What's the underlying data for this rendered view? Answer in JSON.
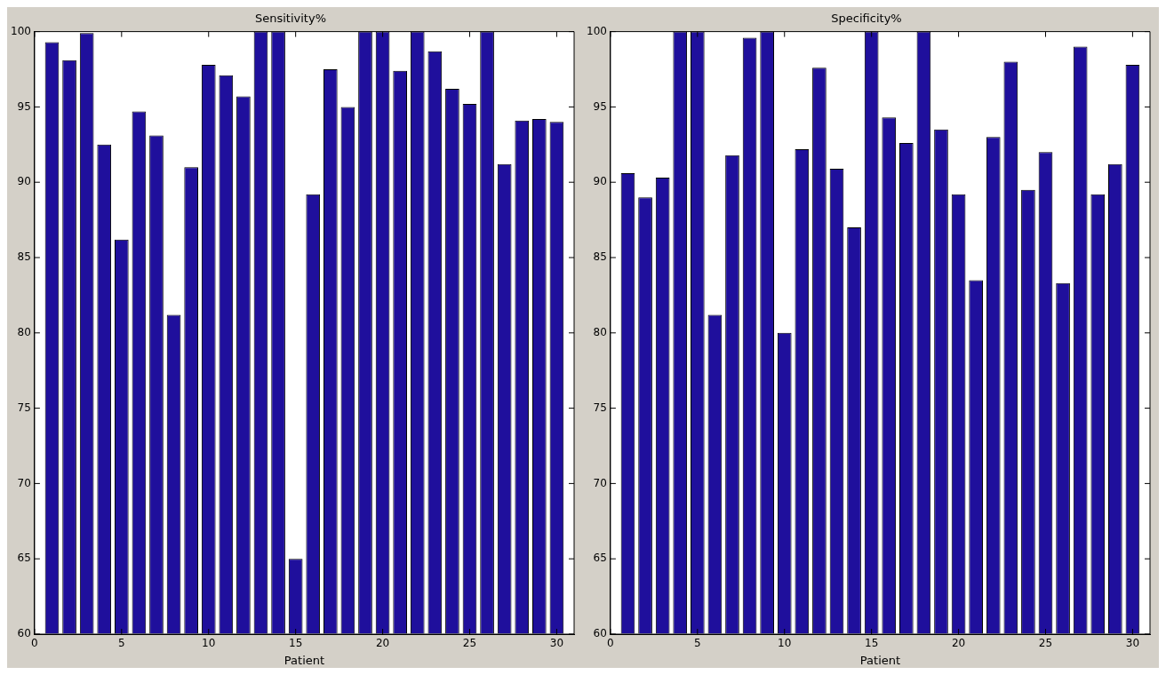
{
  "chart_data": [
    {
      "type": "bar",
      "title": "Sensitivity%",
      "xlabel": "Patient",
      "color": "#1f0f9c",
      "xlim": [
        0,
        31
      ],
      "xticks": [
        0,
        5,
        10,
        15,
        20,
        25,
        30
      ],
      "ylim": [
        60,
        100
      ],
      "yticks": [
        60,
        65,
        70,
        75,
        80,
        85,
        90,
        95,
        100
      ],
      "grid": false,
      "legend": false,
      "x": [
        1,
        2,
        3,
        4,
        5,
        6,
        7,
        8,
        9,
        10,
        11,
        12,
        13,
        14,
        15,
        16,
        17,
        18,
        19,
        20,
        21,
        22,
        23,
        24,
        25,
        26,
        27,
        28,
        29,
        30
      ],
      "values": [
        99.3,
        98.1,
        99.9,
        92.5,
        86.2,
        94.7,
        93.1,
        81.2,
        91.0,
        97.8,
        97.1,
        95.7,
        100,
        100,
        65,
        89.2,
        97.5,
        95.0,
        100,
        100,
        97.4,
        100,
        98.7,
        96.2,
        95.2,
        100,
        91.2,
        94.1,
        94.2,
        94.0
      ]
    },
    {
      "type": "bar",
      "title": "Specificity%",
      "xlabel": "Patient",
      "color": "#1f0f9c",
      "xlim": [
        0,
        31
      ],
      "xticks": [
        0,
        5,
        10,
        15,
        20,
        25,
        30
      ],
      "ylim": [
        60,
        100
      ],
      "yticks": [
        60,
        65,
        70,
        75,
        80,
        85,
        90,
        95,
        100
      ],
      "grid": false,
      "legend": false,
      "x": [
        1,
        2,
        3,
        4,
        5,
        6,
        7,
        8,
        9,
        10,
        11,
        12,
        13,
        14,
        15,
        16,
        17,
        18,
        19,
        20,
        21,
        22,
        23,
        24,
        25,
        26,
        27,
        28,
        29,
        30
      ],
      "values": [
        90.6,
        89.0,
        90.3,
        100,
        100,
        81.2,
        91.8,
        99.6,
        100,
        80.0,
        92.2,
        97.6,
        90.9,
        87.0,
        100,
        94.3,
        92.6,
        100,
        93.5,
        89.2,
        83.5,
        93.0,
        98.0,
        89.5,
        92.0,
        83.3,
        99.0,
        89.2,
        91.2,
        97.8
      ]
    }
  ]
}
